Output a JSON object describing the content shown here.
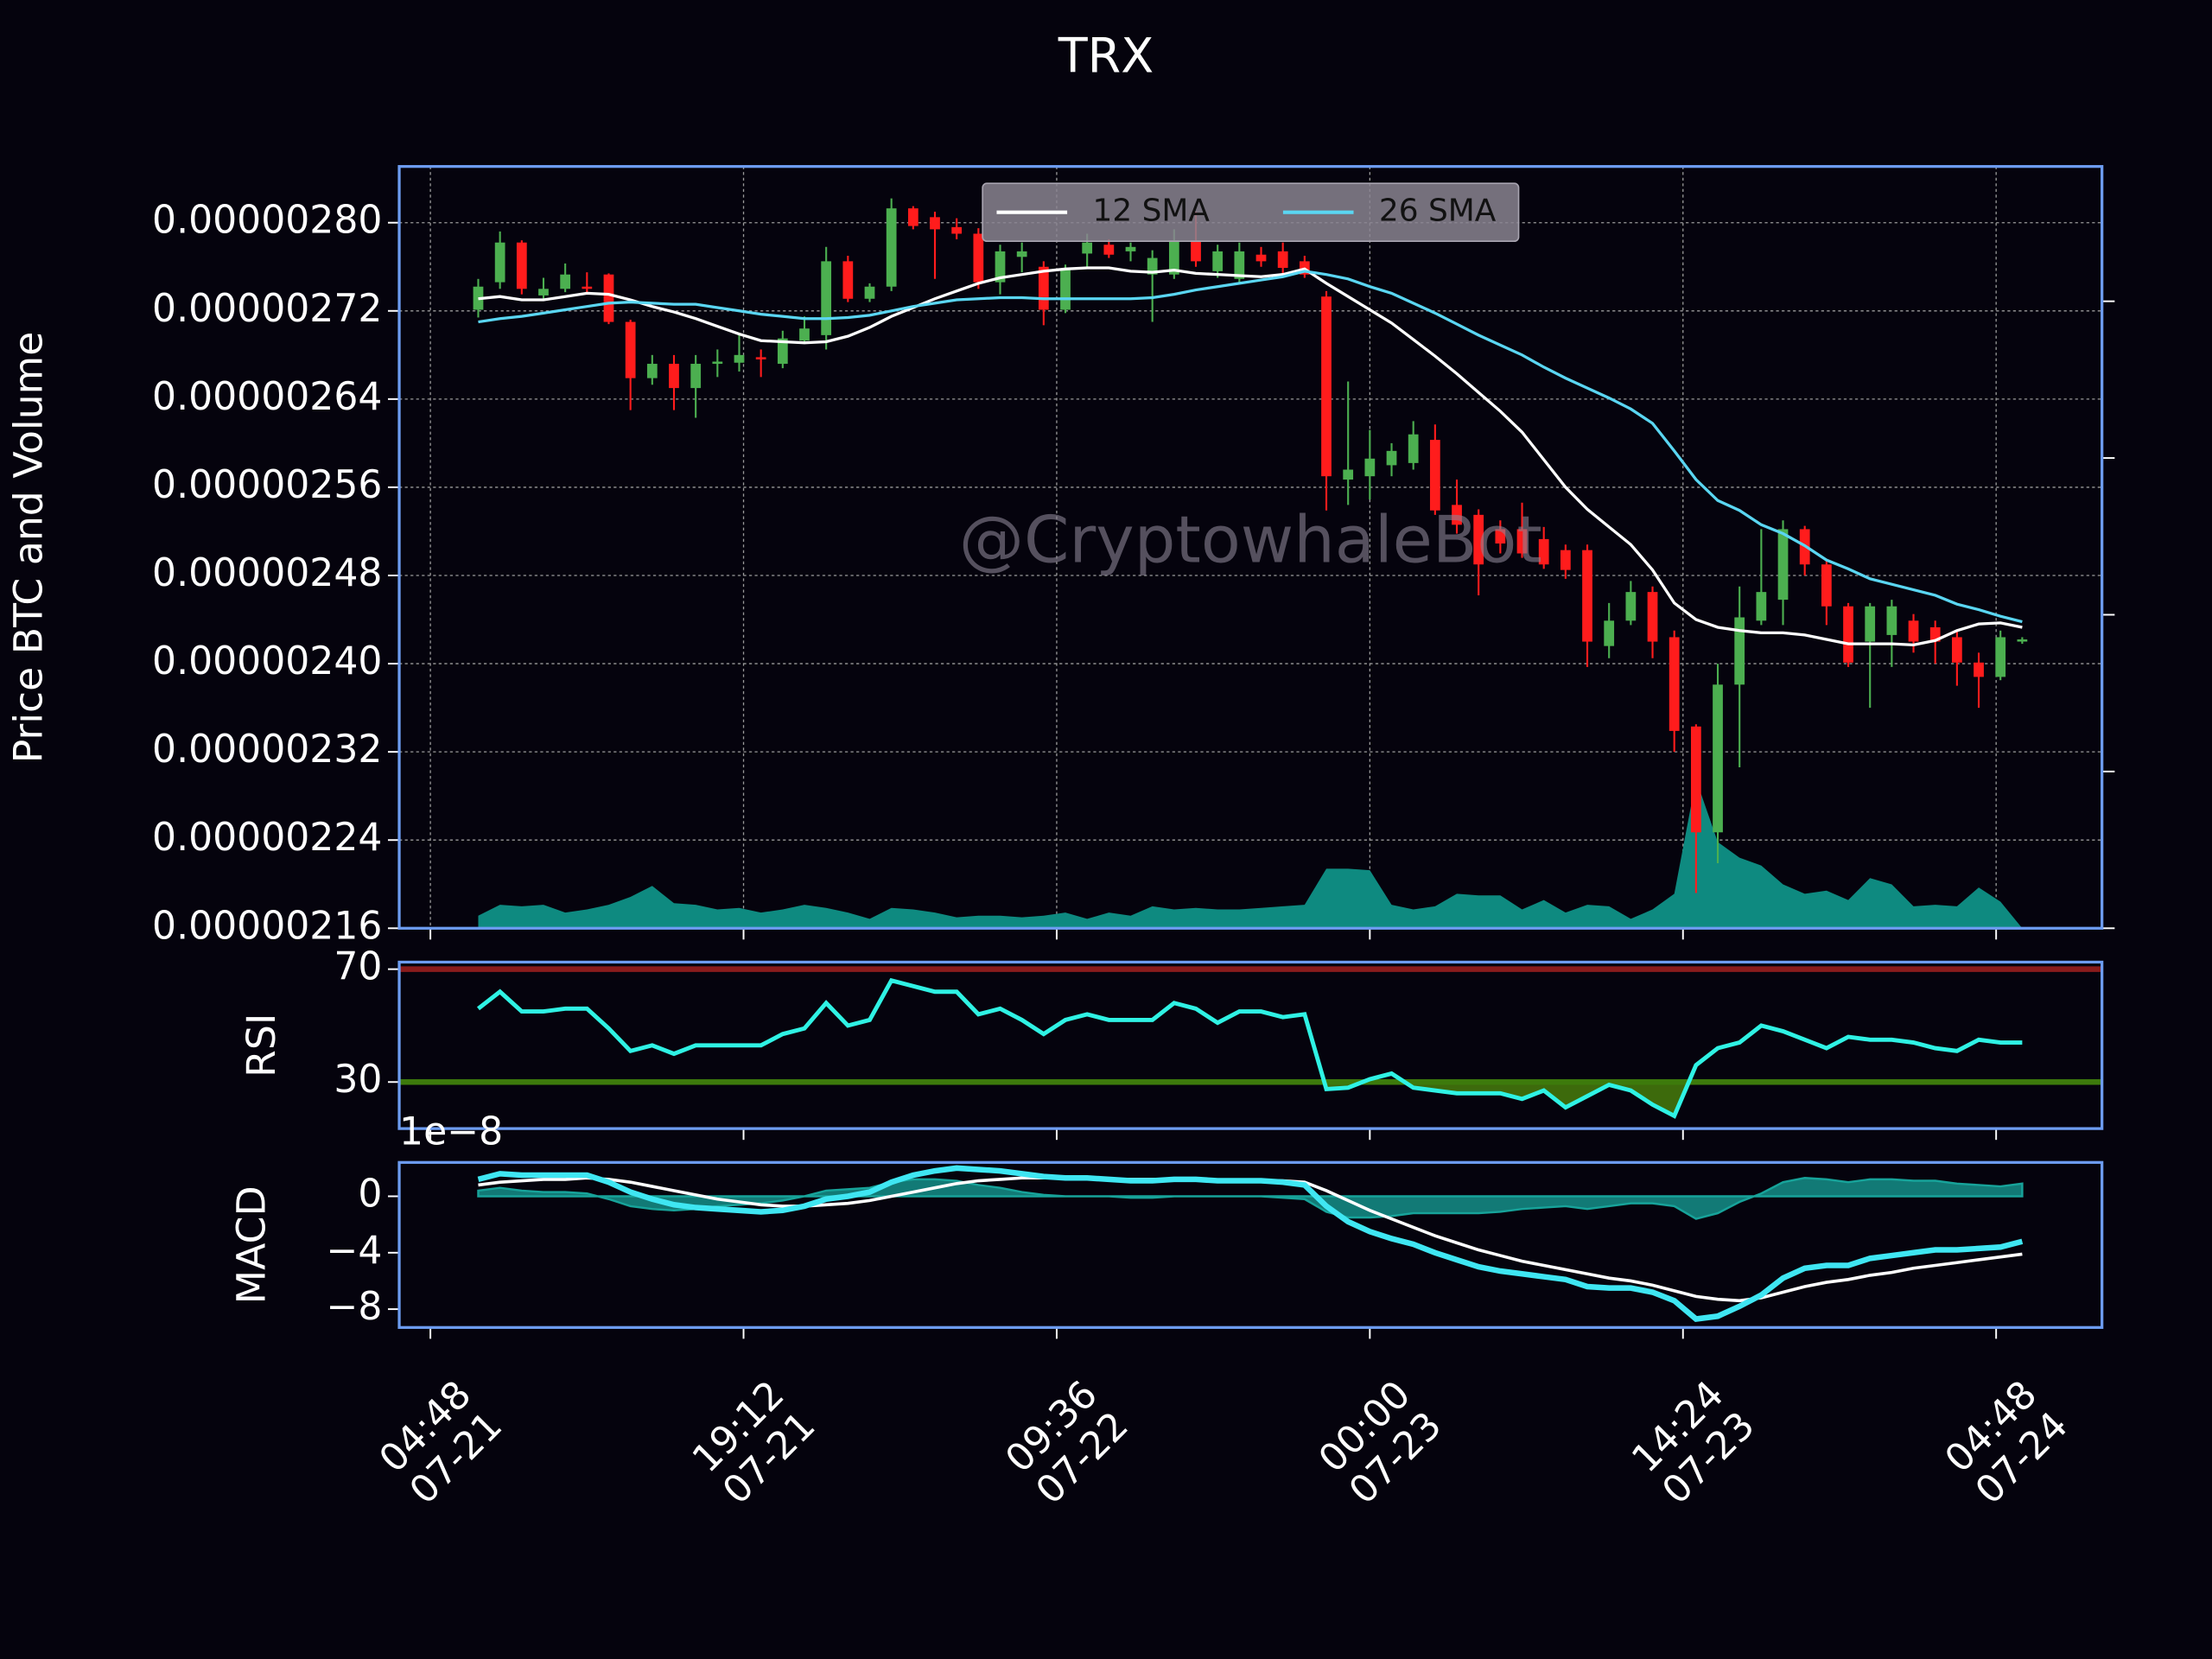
{
  "chart_data": [
    {
      "type": "candlestick",
      "title": "TRX",
      "y_label": "Price BTC and Volume",
      "watermark": "@CryptowhaleBot",
      "grid": true,
      "legend": "upper center",
      "up_color": "#4caf50",
      "down_color": "#ff1c1c",
      "x": [
        "07-21 07:00",
        "07-21 08:00",
        "07-21 09:00",
        "07-21 10:00",
        "07-21 11:00",
        "07-21 12:00",
        "07-21 13:00",
        "07-21 14:00",
        "07-21 15:00",
        "07-21 16:00",
        "07-21 17:00",
        "07-21 18:00",
        "07-21 19:00",
        "07-21 20:00",
        "07-21 21:00",
        "07-21 22:00",
        "07-21 23:00",
        "07-22 00:00",
        "07-22 01:00",
        "07-22 02:00",
        "07-22 03:00",
        "07-22 04:00",
        "07-22 05:00",
        "07-22 06:00",
        "07-22 07:00",
        "07-22 08:00",
        "07-22 09:00",
        "07-22 10:00",
        "07-22 11:00",
        "07-22 12:00",
        "07-22 13:00",
        "07-22 14:00",
        "07-22 15:00",
        "07-22 16:00",
        "07-22 17:00",
        "07-22 18:00",
        "07-22 19:00",
        "07-22 20:00",
        "07-22 21:00",
        "07-22 22:00",
        "07-22 23:00",
        "07-23 00:00",
        "07-23 01:00",
        "07-23 02:00",
        "07-23 03:00",
        "07-23 04:00",
        "07-23 05:00",
        "07-23 06:00",
        "07-23 07:00",
        "07-23 08:00",
        "07-23 09:00",
        "07-23 10:00",
        "07-23 11:00",
        "07-23 12:00",
        "07-23 13:00",
        "07-23 14:00",
        "07-23 15:00",
        "07-23 16:00",
        "07-23 17:00",
        "07-23 18:00",
        "07-23 19:00",
        "07-23 20:00",
        "07-23 21:00",
        "07-23 22:00",
        "07-23 23:00",
        "07-24 00:00",
        "07-24 01:00",
        "07-24 02:00",
        "07-24 03:00",
        "07-24 04:00",
        "07-24 05:00",
        "07-24 06:00"
      ],
      "open": [
        2.721e-06,
        2.746e-06,
        2.782e-06,
        2.734e-06,
        2.74e-06,
        2.742e-06,
        2.753e-06,
        2.71e-06,
        2.659e-06,
        2.672e-06,
        2.65e-06,
        2.672e-06,
        2.673e-06,
        2.678e-06,
        2.672e-06,
        2.693e-06,
        2.698e-06,
        2.765e-06,
        2.731e-06,
        2.742e-06,
        2.813e-06,
        2.805e-06,
        2.796e-06,
        2.79e-06,
        2.746e-06,
        2.769e-06,
        2.76e-06,
        2.721e-06,
        2.772e-06,
        2.78e-06,
        2.774e-06,
        2.753e-06,
        2.753e-06,
        2.784e-06,
        2.756e-06,
        2.749e-06,
        2.771e-06,
        2.774e-06,
        2.765e-06,
        2.733e-06,
        2.567e-06,
        2.57e-06,
        2.58e-06,
        2.582e-06,
        2.603e-06,
        2.544e-06,
        2.535e-06,
        2.522e-06,
        2.522e-06,
        2.513e-06,
        2.503e-06,
        2.503e-06,
        2.416e-06,
        2.439e-06,
        2.465e-06,
        2.424e-06,
        2.343e-06,
        2.247e-06,
        2.381e-06,
        2.439e-06,
        2.458e-06,
        2.522e-06,
        2.49e-06,
        2.452e-06,
        2.42e-06,
        2.426e-06,
        2.439e-06,
        2.433e-06,
        2.424e-06,
        2.401e-06,
        2.388e-06,
        2.42e-06
      ],
      "high": [
        2.749e-06,
        2.792e-06,
        2.784e-06,
        2.75e-06,
        2.763e-06,
        2.755e-06,
        2.754e-06,
        2.712e-06,
        2.68e-06,
        2.68e-06,
        2.68e-06,
        2.685e-06,
        2.7e-06,
        2.685e-06,
        2.702e-06,
        2.715e-06,
        2.778e-06,
        2.77e-06,
        2.745e-06,
        2.822e-06,
        2.815e-06,
        2.81e-06,
        2.804e-06,
        2.795e-06,
        2.78e-06,
        2.782e-06,
        2.765e-06,
        2.762e-06,
        2.79e-06,
        2.785e-06,
        2.782e-06,
        2.775e-06,
        2.794e-06,
        2.81e-06,
        2.78e-06,
        2.782e-06,
        2.778e-06,
        2.782e-06,
        2.77e-06,
        2.738e-06,
        2.656e-06,
        2.612e-06,
        2.6e-06,
        2.62e-06,
        2.617e-06,
        2.567e-06,
        2.54e-06,
        2.53e-06,
        2.546e-06,
        2.524e-06,
        2.508e-06,
        2.508e-06,
        2.455e-06,
        2.475e-06,
        2.47e-06,
        2.43e-06,
        2.345e-06,
        2.4e-06,
        2.47e-06,
        2.522e-06,
        2.53e-06,
        2.525e-06,
        2.495e-06,
        2.455e-06,
        2.455e-06,
        2.458e-06,
        2.445e-06,
        2.439e-06,
        2.43e-06,
        2.41e-06,
        2.43e-06,
        2.424e-06
      ],
      "low": [
        2.714e-06,
        2.74e-06,
        2.735e-06,
        2.73e-06,
        2.737e-06,
        2.736e-06,
        2.708e-06,
        2.63e-06,
        2.653e-06,
        2.63e-06,
        2.623e-06,
        2.66e-06,
        2.665e-06,
        2.66e-06,
        2.668e-06,
        2.69e-06,
        2.685e-06,
        2.728e-06,
        2.728e-06,
        2.738e-06,
        2.794e-06,
        2.749e-06,
        2.785e-06,
        2.74e-06,
        2.735e-06,
        2.755e-06,
        2.707e-06,
        2.718e-06,
        2.76e-06,
        2.768e-06,
        2.765e-06,
        2.71e-06,
        2.749e-06,
        2.76e-06,
        2.75e-06,
        2.745e-06,
        2.76e-06,
        2.753e-06,
        2.75e-06,
        2.539e-06,
        2.544e-06,
        2.549e-06,
        2.57e-06,
        2.576e-06,
        2.535e-06,
        2.518e-06,
        2.462e-06,
        2.5e-06,
        2.496e-06,
        2.486e-06,
        2.477e-06,
        2.397e-06,
        2.405e-06,
        2.435e-06,
        2.405e-06,
        2.32e-06,
        2.192e-06,
        2.219e-06,
        2.306e-06,
        2.435e-06,
        2.435e-06,
        2.48e-06,
        2.435e-06,
        2.397e-06,
        2.36e-06,
        2.397e-06,
        2.41e-06,
        2.4e-06,
        2.38e-06,
        2.36e-06,
        2.385e-06,
        2.418e-06
      ],
      "close": [
        2.742e-06,
        2.782e-06,
        2.74e-06,
        2.74e-06,
        2.753e-06,
        2.74e-06,
        2.71e-06,
        2.659e-06,
        2.672e-06,
        2.65e-06,
        2.672e-06,
        2.674e-06,
        2.68e-06,
        2.676e-06,
        2.695e-06,
        2.704e-06,
        2.765e-06,
        2.731e-06,
        2.742e-06,
        2.813e-06,
        2.797e-06,
        2.794e-06,
        2.79e-06,
        2.746e-06,
        2.774e-06,
        2.774e-06,
        2.721e-06,
        2.757e-06,
        2.782e-06,
        2.771e-06,
        2.778e-06,
        2.768e-06,
        2.784e-06,
        2.765e-06,
        2.774e-06,
        2.774e-06,
        2.765e-06,
        2.759e-06,
        2.753e-06,
        2.57e-06,
        2.576e-06,
        2.586e-06,
        2.593e-06,
        2.608e-06,
        2.539e-06,
        2.526e-06,
        2.49e-06,
        2.509e-06,
        2.5e-06,
        2.49e-06,
        2.485e-06,
        2.42e-06,
        2.439e-06,
        2.465e-06,
        2.42e-06,
        2.339e-06,
        2.247e-06,
        2.381e-06,
        2.442e-06,
        2.465e-06,
        2.522e-06,
        2.49e-06,
        2.452e-06,
        2.401e-06,
        2.452e-06,
        2.452e-06,
        2.42e-06,
        2.42e-06,
        2.401e-06,
        2.388e-06,
        2.424e-06,
        2.422e-06
      ],
      "series": [
        {
          "name": "12 SMA",
          "color": "#ffffff",
          "values": [
            2.731e-06,
            2.733e-06,
            2.73e-06,
            2.73e-06,
            2.733e-06,
            2.736e-06,
            2.735e-06,
            2.73e-06,
            2.724e-06,
            2.719e-06,
            2.713e-06,
            2.706e-06,
            2.699e-06,
            2.693e-06,
            2.692e-06,
            2.691e-06,
            2.692e-06,
            2.697e-06,
            2.705e-06,
            2.715e-06,
            2.723e-06,
            2.731e-06,
            2.738e-06,
            2.745e-06,
            2.75e-06,
            2.753e-06,
            2.756e-06,
            2.758e-06,
            2.759e-06,
            2.759e-06,
            2.756e-06,
            2.755e-06,
            2.757e-06,
            2.754e-06,
            2.753e-06,
            2.752e-06,
            2.751e-06,
            2.753e-06,
            2.758e-06,
            2.745e-06,
            2.733e-06,
            2.721e-06,
            2.709e-06,
            2.694e-06,
            2.679e-06,
            2.663e-06,
            2.646e-06,
            2.629e-06,
            2.61e-06,
            2.585e-06,
            2.56e-06,
            2.54e-06,
            2.524e-06,
            2.508e-06,
            2.485e-06,
            2.455e-06,
            2.44e-06,
            2.433e-06,
            2.43e-06,
            2.428e-06,
            2.428e-06,
            2.426e-06,
            2.422e-06,
            2.418e-06,
            2.418e-06,
            2.418e-06,
            2.417e-06,
            2.421e-06,
            2.43e-06,
            2.436e-06,
            2.437e-06,
            2.433e-06
          ]
        },
        {
          "name": "26 SMA",
          "color": "#5ad6f2",
          "values": [
            2.71e-06,
            2.713e-06,
            2.715e-06,
            2.718e-06,
            2.721e-06,
            2.724e-06,
            2.727e-06,
            2.728e-06,
            2.727e-06,
            2.726e-06,
            2.726e-06,
            2.723e-06,
            2.72e-06,
            2.717e-06,
            2.715e-06,
            2.713e-06,
            2.713e-06,
            2.714e-06,
            2.716e-06,
            2.72e-06,
            2.724e-06,
            2.727e-06,
            2.73e-06,
            2.731e-06,
            2.732e-06,
            2.732e-06,
            2.731e-06,
            2.731e-06,
            2.731e-06,
            2.731e-06,
            2.731e-06,
            2.732e-06,
            2.735e-06,
            2.739e-06,
            2.742e-06,
            2.745e-06,
            2.748e-06,
            2.751e-06,
            2.756e-06,
            2.753e-06,
            2.749e-06,
            2.742e-06,
            2.736e-06,
            2.727e-06,
            2.718e-06,
            2.708e-06,
            2.698e-06,
            2.689e-06,
            2.68e-06,
            2.669e-06,
            2.659e-06,
            2.65e-06,
            2.641e-06,
            2.631e-06,
            2.618e-06,
            2.593e-06,
            2.567e-06,
            2.548e-06,
            2.539e-06,
            2.526e-06,
            2.518e-06,
            2.507e-06,
            2.494e-06,
            2.486e-06,
            2.477e-06,
            2.472e-06,
            2.467e-06,
            2.462e-06,
            2.454e-06,
            2.449e-06,
            2.443e-06,
            2.438e-06
          ]
        }
      ],
      "volume": {
        "axis": "y2",
        "color": "#0e8a80",
        "values": [
          0.08,
          0.15,
          0.14,
          0.15,
          0.1,
          0.12,
          0.15,
          0.2,
          0.27,
          0.16,
          0.15,
          0.12,
          0.13,
          0.1,
          0.12,
          0.15,
          0.13,
          0.1,
          0.06,
          0.13,
          0.12,
          0.1,
          0.07,
          0.08,
          0.08,
          0.07,
          0.08,
          0.1,
          0.06,
          0.1,
          0.08,
          0.14,
          0.12,
          0.13,
          0.12,
          0.12,
          0.13,
          0.14,
          0.15,
          0.38,
          0.38,
          0.37,
          0.15,
          0.12,
          0.14,
          0.22,
          0.21,
          0.21,
          0.12,
          0.18,
          0.1,
          0.15,
          0.14,
          0.06,
          0.12,
          0.22,
          0.95,
          0.55,
          0.45,
          0.4,
          0.28,
          0.22,
          0.24,
          0.18,
          0.32,
          0.28,
          0.14,
          0.15,
          0.14,
          0.26,
          0.17,
          0
        ]
      },
      "xlim": [
        "07-21 03:22",
        "07-24 09:40"
      ],
      "xticks": [
        {
          "value": "07-21 04:48",
          "label": [
            "04:48",
            "07-21"
          ]
        },
        {
          "value": "07-21 19:12",
          "label": [
            "19:12",
            "07-21"
          ]
        },
        {
          "value": "07-22 09:36",
          "label": [
            "09:36",
            "07-22"
          ]
        },
        {
          "value": "07-23 00:00",
          "label": [
            "00:00",
            "07-23"
          ]
        },
        {
          "value": "07-23 14:24",
          "label": [
            "14:24",
            "07-23"
          ]
        },
        {
          "value": "07-24 04:48",
          "label": [
            "04:48",
            "07-24"
          ]
        }
      ],
      "ylim": [
        2.16e-06,
        2.851e-06
      ],
      "yticks": [
        {
          "value": 2.16e-06,
          "label": "0.00000216"
        },
        {
          "value": 2.24e-06,
          "label": "0.00000224"
        },
        {
          "value": 2.32e-06,
          "label": "0.00000232"
        },
        {
          "value": 2.4e-06,
          "label": "0.00000240"
        },
        {
          "value": 2.48e-06,
          "label": "0.00000248"
        },
        {
          "value": 2.56e-06,
          "label": "0.00000256"
        },
        {
          "value": 2.64e-06,
          "label": "0.00000264"
        },
        {
          "value": 2.72e-06,
          "label": "0.00000272"
        },
        {
          "value": 2.8e-06,
          "label": "0.00000280"
        }
      ],
      "y2lim": [
        0,
        4.86
      ],
      "y2ticks": [
        0,
        1,
        2,
        3,
        4
      ]
    },
    {
      "type": "line",
      "y_label": "RSI",
      "color": "#2ff2e4",
      "values": [
        56,
        62,
        55,
        55,
        56,
        56,
        49,
        41,
        43,
        40,
        43,
        43,
        43,
        43,
        47,
        49,
        58,
        50,
        52,
        66,
        64,
        62,
        62,
        54,
        56,
        52,
        47,
        52,
        54,
        52,
        52,
        52,
        58,
        56,
        51,
        55,
        55,
        53,
        54,
        27.5,
        28,
        31,
        33,
        28,
        27,
        26,
        26,
        26,
        24,
        27,
        21,
        25,
        29,
        27,
        22,
        18,
        36,
        42,
        44,
        50,
        48,
        45,
        42,
        46,
        45,
        45,
        44,
        42,
        41,
        45,
        44,
        44
      ],
      "ylim": [
        13.5,
        72.5
      ],
      "yticks": [
        30,
        70
      ],
      "band_colors": [
        "#3d7a0c",
        "#8a1c1c"
      ],
      "fill_color": "#3d6a0c"
    },
    {
      "type": "macd",
      "y_label": "MACD",
      "offset_text": "1e−8",
      "macd": {
        "color": "#3fe6f2",
        "values": [
          1.2,
          1.6,
          1.5,
          1.5,
          1.5,
          1.5,
          1.0,
          0.3,
          -0.2,
          -0.6,
          -0.8,
          -0.9,
          -1.0,
          -1.1,
          -1.0,
          -0.7,
          -0.2,
          0,
          0.3,
          1.0,
          1.5,
          1.8,
          2.0,
          1.9,
          1.8,
          1.6,
          1.4,
          1.3,
          1.3,
          1.2,
          1.1,
          1.1,
          1.2,
          1.2,
          1.1,
          1.1,
          1.1,
          1.0,
          0.8,
          -0.7,
          -1.8,
          -2.5,
          -3.0,
          -3.4,
          -4.0,
          -4.5,
          -5.0,
          -5.3,
          -5.5,
          -5.7,
          -5.9,
          -6.4,
          -6.5,
          -6.5,
          -6.8,
          -7.4,
          -8.7,
          -8.5,
          -7.8,
          -7.0,
          -5.8,
          -5.1,
          -4.9,
          -4.9,
          -4.4,
          -4.2,
          -4.0,
          -3.8,
          -3.8,
          -3.7,
          -3.6,
          -3.2
        ]
      },
      "signal": {
        "color": "#ffffff",
        "values": [
          0.8,
          1.0,
          1.1,
          1.2,
          1.2,
          1.3,
          1.2,
          1.0,
          0.7,
          0.4,
          0.1,
          -0.2,
          -0.4,
          -0.6,
          -0.7,
          -0.7,
          -0.6,
          -0.5,
          -0.3,
          0,
          0.3,
          0.6,
          0.9,
          1.1,
          1.2,
          1.3,
          1.3,
          1.3,
          1.3,
          1.2,
          1.2,
          1.2,
          1.2,
          1.2,
          1.1,
          1.1,
          1.1,
          1.1,
          1.0,
          0.4,
          -0.3,
          -1.0,
          -1.6,
          -2.2,
          -2.8,
          -3.3,
          -3.8,
          -4.2,
          -4.6,
          -4.9,
          -5.2,
          -5.5,
          -5.8,
          -6.0,
          -6.3,
          -6.7,
          -7.1,
          -7.3,
          -7.4,
          -7.2,
          -6.8,
          -6.4,
          -6.1,
          -5.9,
          -5.6,
          -5.4,
          -5.1,
          -4.9,
          -4.7,
          -4.5,
          -4.3,
          -4.1
        ]
      },
      "hist": {
        "color": "#17a39a",
        "values": [
          0.4,
          0.6,
          0.4,
          0.3,
          0.3,
          0.2,
          -0.2,
          -0.7,
          -0.9,
          -1.0,
          -0.9,
          -0.7,
          -0.6,
          -0.5,
          -0.3,
          0,
          0.4,
          0.5,
          0.6,
          1.0,
          1.2,
          1.2,
          1.1,
          0.8,
          0.6,
          0.3,
          0.1,
          0,
          0,
          0,
          -0.1,
          -0.1,
          0,
          0,
          0,
          0,
          0,
          -0.1,
          -0.2,
          -1.1,
          -1.5,
          -1.5,
          -1.4,
          -1.2,
          -1.2,
          -1.2,
          -1.2,
          -1.1,
          -0.9,
          -0.8,
          -0.7,
          -0.9,
          -0.7,
          -0.5,
          -0.5,
          -0.7,
          -1.6,
          -1.2,
          -0.4,
          0.2,
          1.0,
          1.3,
          1.2,
          1.0,
          1.2,
          1.2,
          1.1,
          1.1,
          0.9,
          0.8,
          0.7,
          0.9
        ]
      },
      "ylim": [
        -9.3,
        2.4
      ],
      "yticks": [
        {
          "value": -8,
          "label": "−8"
        },
        {
          "value": -4,
          "label": "−4"
        },
        0
      ]
    }
  ]
}
